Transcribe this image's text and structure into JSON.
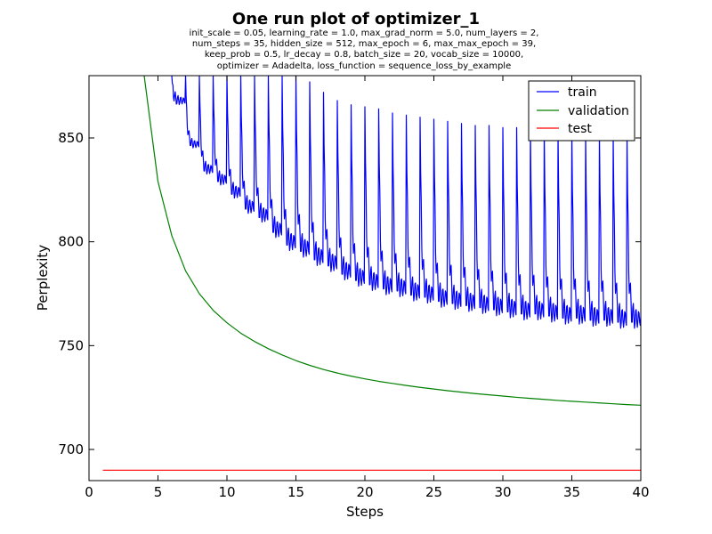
{
  "chart_data": {
    "type": "line",
    "title": "One run plot of optimizer_1",
    "subtitle_lines": [
      "init_scale = 0.05, learning_rate = 1.0, max_grad_norm = 5.0, num_layers = 2,",
      "num_steps = 35, hidden_size = 512, max_epoch = 6, max_max_epoch = 39,",
      "keep_prob = 0.5, lr_decay = 0.8, batch_size = 20, vocab_size = 10000,",
      "optimizer = Adadelta, loss_function = sequence_loss_by_example"
    ],
    "xlabel": "Steps",
    "ylabel": "Perplexity",
    "xlim": [
      0,
      40
    ],
    "ylim": [
      685,
      880
    ],
    "x_ticks": [
      0,
      5,
      10,
      15,
      20,
      25,
      30,
      35,
      40
    ],
    "y_ticks": [
      700,
      750,
      800,
      850
    ],
    "grid": false,
    "legend_position": "top-right",
    "series": [
      {
        "name": "train",
        "color": "#0000ff",
        "pattern": "sawtooth",
        "epochs": [
          {
            "x": 6,
            "start": 880,
            "low": 868
          },
          {
            "x": 7,
            "start": 880,
            "low": 847
          },
          {
            "x": 8,
            "start": 880,
            "low": 835
          },
          {
            "x": 9,
            "start": 880,
            "low": 830
          },
          {
            "x": 10,
            "start": 880,
            "low": 824
          },
          {
            "x": 11,
            "start": 880,
            "low": 817
          },
          {
            "x": 12,
            "start": 880,
            "low": 813
          },
          {
            "x": 13,
            "start": 880,
            "low": 806
          },
          {
            "x": 14,
            "start": 880,
            "low": 800
          },
          {
            "x": 15,
            "start": 880,
            "low": 797
          },
          {
            "x": 16,
            "start": 877,
            "low": 793
          },
          {
            "x": 17,
            "start": 872,
            "low": 790
          },
          {
            "x": 18,
            "start": 868,
            "low": 786
          },
          {
            "x": 19,
            "start": 866,
            "low": 783
          },
          {
            "x": 20,
            "start": 865,
            "low": 781
          },
          {
            "x": 21,
            "start": 864,
            "low": 779
          },
          {
            "x": 22,
            "start": 862,
            "low": 778
          },
          {
            "x": 23,
            "start": 861,
            "low": 776
          },
          {
            "x": 24,
            "start": 860,
            "low": 775
          },
          {
            "x": 25,
            "start": 859,
            "low": 773
          },
          {
            "x": 26,
            "start": 858,
            "low": 772
          },
          {
            "x": 27,
            "start": 857,
            "low": 771
          },
          {
            "x": 28,
            "start": 856,
            "low": 770
          },
          {
            "x": 29,
            "start": 856,
            "low": 769
          },
          {
            "x": 30,
            "start": 855,
            "low": 768
          },
          {
            "x": 31,
            "start": 855,
            "low": 767
          },
          {
            "x": 32,
            "start": 854,
            "low": 767
          },
          {
            "x": 33,
            "start": 854,
            "low": 766
          },
          {
            "x": 34,
            "start": 853,
            "low": 765
          },
          {
            "x": 35,
            "start": 853,
            "low": 765
          },
          {
            "x": 36,
            "start": 852,
            "low": 764
          },
          {
            "x": 37,
            "start": 852,
            "low": 764
          },
          {
            "x": 38,
            "start": 851,
            "low": 763
          },
          {
            "x": 39,
            "start": 851,
            "low": 763
          }
        ],
        "end_value": 764
      },
      {
        "name": "validation",
        "color": "#008000",
        "x": [
          4,
          5,
          6,
          7,
          8,
          9,
          10,
          11,
          12,
          13,
          14,
          15,
          16,
          17,
          18,
          19,
          20,
          21,
          22,
          23,
          24,
          25,
          26,
          27,
          28,
          29,
          30,
          31,
          32,
          33,
          34,
          35,
          36,
          37,
          38,
          39,
          40
        ],
        "y": [
          880,
          829,
          803,
          786,
          775,
          767,
          761,
          756,
          752,
          748.5,
          745.5,
          742.8,
          740.5,
          738.5,
          736.8,
          735.3,
          734,
          732.8,
          731.8,
          730.8,
          729.9,
          729.1,
          728.3,
          727.6,
          726.9,
          726.3,
          725.7,
          725.1,
          724.6,
          724.1,
          723.6,
          723.2,
          722.8,
          722.4,
          722,
          721.6,
          721.3
        ]
      },
      {
        "name": "test",
        "color": "#ff0000",
        "x": [
          1,
          40
        ],
        "y": [
          690,
          690
        ]
      }
    ]
  }
}
